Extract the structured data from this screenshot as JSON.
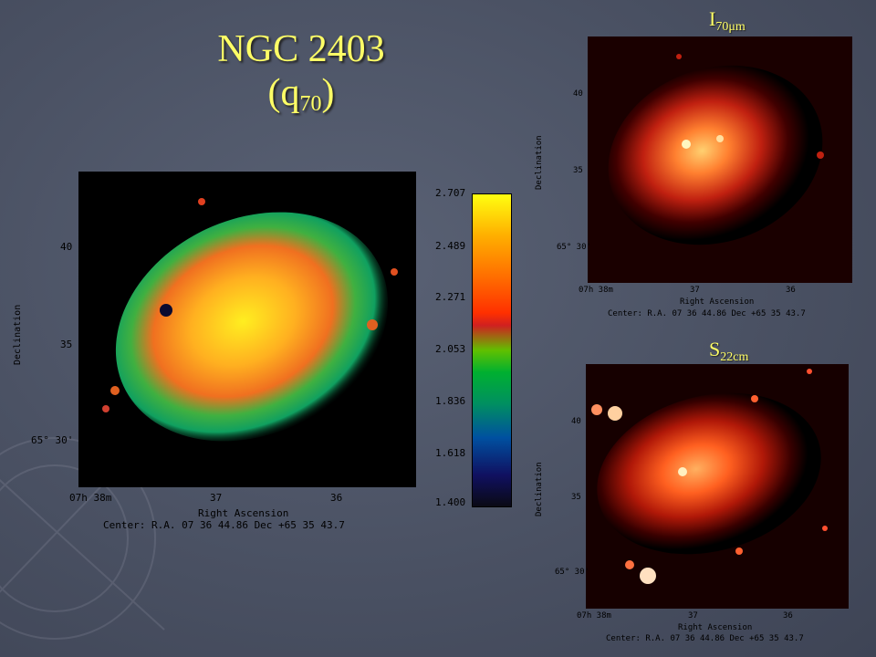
{
  "title": {
    "line1": "NGC 2403",
    "q": "q",
    "q_sub": "70"
  },
  "labels": {
    "top_right": {
      "main": "I",
      "sub": "70μm"
    },
    "bottom_right": {
      "main": "S",
      "sub": "22cm"
    }
  },
  "main_panel": {
    "dec_ticks": [
      "40",
      "35",
      "65° 30'"
    ],
    "ra_ticks": [
      "07h 38m",
      "37",
      "36"
    ],
    "ylabel": "Declination",
    "xlabel": "Right Ascension",
    "center": "Center:  R.A. 07 36 44.86    Dec  +65 35 43.7"
  },
  "colorbar": {
    "ticks": [
      "2.707",
      "2.489",
      "2.271",
      "2.053",
      "1.836",
      "1.618",
      "1.400"
    ]
  },
  "top_panel": {
    "dec_ticks": [
      "40",
      "35",
      "65° 30'"
    ],
    "ra_ticks": [
      "07h 38m",
      "37",
      "36"
    ],
    "ylabel": "Declination",
    "xlabel": "Right Ascension",
    "center": "Center:  R.A. 07 36 44.86    Dec  +65 35 43.7"
  },
  "bottom_panel": {
    "dec_ticks": [
      "40",
      "35",
      "65° 30'"
    ],
    "ra_ticks": [
      "07h 38m",
      "37",
      "36"
    ],
    "ylabel": "Declination",
    "xlabel": "Right Ascension",
    "center": "Center:  R.A. 07 36 44.86    Dec  +65 35 43.7"
  },
  "colors": {
    "title": "#ffff66",
    "background": "#4a5163"
  }
}
